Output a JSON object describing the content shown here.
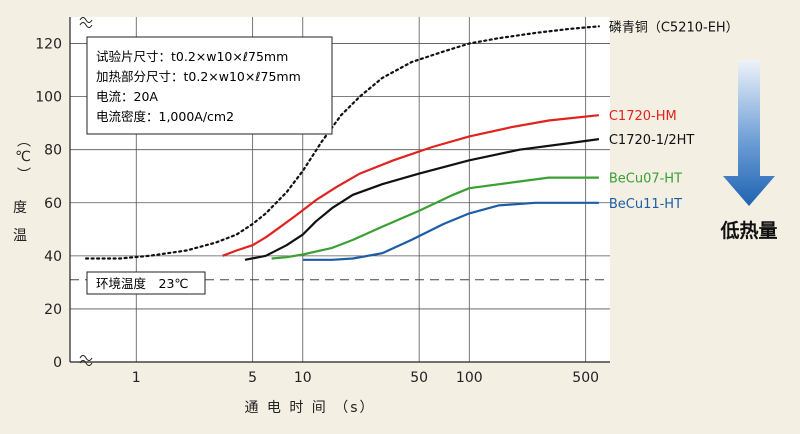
{
  "chart_data": {
    "type": "line",
    "xlabel": "通 电 时 间 （s）",
    "ylabel": [
      "温",
      "度",
      "（℃）"
    ],
    "x_scale": "log",
    "xlim": [
      0.4,
      700
    ],
    "ylim": [
      0,
      130
    ],
    "x_ticks": [
      {
        "v": 1,
        "label": "1"
      },
      {
        "v": 5,
        "label": "5"
      },
      {
        "v": 10,
        "label": "10"
      },
      {
        "v": 50,
        "label": "50"
      },
      {
        "v": 100,
        "label": "100"
      },
      {
        "v": 500,
        "label": "500"
      }
    ],
    "y_ticks": [
      0,
      20,
      40,
      60,
      80,
      100,
      120
    ],
    "grid": true,
    "conditions_box": [
      "试验片尺寸：t0.2×w10×ℓ75mm",
      "加热部分尺寸：t0.2×w10×ℓ75mm",
      "电流：20A",
      "电流密度：1,000A/cm2"
    ],
    "ambient": {
      "label": "环境温度　23℃",
      "value": 31
    },
    "arrow_label": "低热量",
    "colors": {
      "background": "#f3efe3",
      "arrow": "#1f63b0"
    },
    "series": [
      {
        "name": "磷青铜（C5210-EH）",
        "color": "#111111",
        "style": "dotted",
        "points": [
          [
            0.5,
            39
          ],
          [
            0.8,
            39
          ],
          [
            1.2,
            40
          ],
          [
            2,
            42
          ],
          [
            3,
            45
          ],
          [
            4,
            48
          ],
          [
            5,
            52
          ],
          [
            6,
            56
          ],
          [
            8,
            64
          ],
          [
            10,
            72
          ],
          [
            13,
            83
          ],
          [
            17,
            93
          ],
          [
            22,
            100
          ],
          [
            30,
            107
          ],
          [
            45,
            113
          ],
          [
            70,
            117
          ],
          [
            100,
            120
          ],
          [
            150,
            122
          ],
          [
            250,
            124
          ],
          [
            400,
            125.5
          ],
          [
            600,
            126.5
          ]
        ]
      },
      {
        "name": "C1720-HM",
        "color": "#e0231e",
        "style": "solid",
        "points": [
          [
            3.3,
            40
          ],
          [
            4,
            42
          ],
          [
            5,
            44
          ],
          [
            6,
            47
          ],
          [
            7,
            50
          ],
          [
            9,
            55
          ],
          [
            12,
            61
          ],
          [
            16,
            66
          ],
          [
            22,
            71
          ],
          [
            35,
            76
          ],
          [
            60,
            81
          ],
          [
            100,
            85
          ],
          [
            180,
            88.5
          ],
          [
            300,
            91
          ],
          [
            600,
            93
          ]
        ]
      },
      {
        "name": "C1720-1/2HT",
        "color": "#111111",
        "style": "solid",
        "points": [
          [
            4.5,
            38.5
          ],
          [
            6,
            40
          ],
          [
            8,
            44
          ],
          [
            10,
            48
          ],
          [
            12,
            53
          ],
          [
            15,
            58
          ],
          [
            20,
            63
          ],
          [
            30,
            67
          ],
          [
            50,
            71
          ],
          [
            100,
            76
          ],
          [
            200,
            80
          ],
          [
            400,
            82.5
          ],
          [
            600,
            84
          ]
        ]
      },
      {
        "name": "BeCu07-HT",
        "color": "#3aa033",
        "style": "solid",
        "points": [
          [
            6.5,
            39
          ],
          [
            8,
            39.5
          ],
          [
            10,
            40.5
          ],
          [
            15,
            43
          ],
          [
            20,
            46
          ],
          [
            30,
            51
          ],
          [
            50,
            57
          ],
          [
            80,
            63
          ],
          [
            100,
            65.5
          ],
          [
            200,
            68
          ],
          [
            300,
            69.5
          ],
          [
            600,
            69.5
          ]
        ]
      },
      {
        "name": "BeCu11-HT",
        "color": "#1d5ca6",
        "style": "solid",
        "points": [
          [
            10,
            38.5
          ],
          [
            15,
            38.5
          ],
          [
            20,
            39
          ],
          [
            30,
            41
          ],
          [
            45,
            46
          ],
          [
            70,
            52
          ],
          [
            100,
            56
          ],
          [
            150,
            59
          ],
          [
            250,
            60
          ],
          [
            600,
            60
          ]
        ]
      }
    ]
  }
}
